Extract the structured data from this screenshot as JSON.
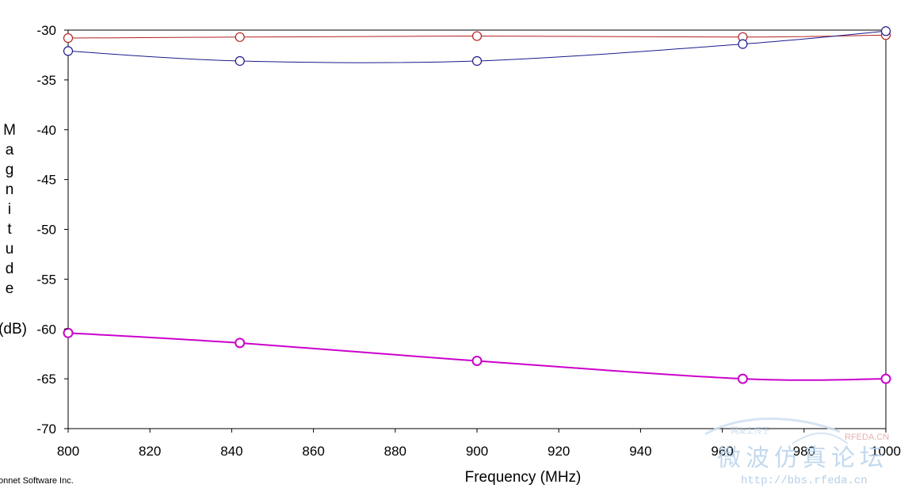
{
  "chart_data": {
    "type": "line",
    "xlabel": "Frequency (MHz)",
    "ylabel": "Magnitude (dB)",
    "ylabel_visible": "Magnitude\n(dB)",
    "xlim": [
      800,
      1000
    ],
    "ylim": [
      -70,
      -30
    ],
    "x_ticks": [
      800,
      820,
      840,
      860,
      880,
      900,
      920,
      940,
      960,
      980,
      1000
    ],
    "y_ticks": [
      -30,
      -35,
      -40,
      -45,
      -50,
      -55,
      -60,
      -65,
      -70
    ],
    "grid": false,
    "series": [
      {
        "color": "#b22222",
        "x": [
          800,
          842,
          900,
          965,
          1000
        ],
        "y": [
          -30.8,
          -30.7,
          -30.6,
          -30.7,
          -30.5
        ]
      },
      {
        "color": "#1a1a8c",
        "x": [
          800,
          842,
          900,
          965,
          1000
        ],
        "y": [
          -32.1,
          -33.1,
          -33.1,
          -31.4,
          -30.1
        ]
      },
      {
        "color": "#cc00cc",
        "x": [
          800,
          842,
          900,
          965,
          1000
        ],
        "y": [
          -60.4,
          -61.4,
          -63.2,
          -65.0,
          -65.0
        ]
      }
    ]
  },
  "footer": {
    "copyright": "onnet Software Inc."
  },
  "watermark": {
    "chinese": "微波仿真论坛",
    "small_text": "网友上传于",
    "url": "http://bbs.rfeda.cn",
    "brand": "RFEDA.CN"
  }
}
